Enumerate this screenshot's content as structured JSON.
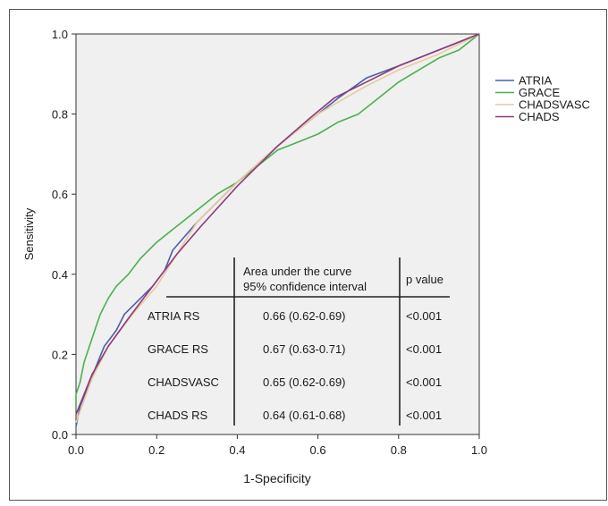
{
  "chart_data": {
    "type": "line",
    "title": "",
    "xlabel": "1-Specificity",
    "ylabel": "Sensitivity",
    "xlim": [
      0,
      1
    ],
    "ylim": [
      0,
      1
    ],
    "xticks": [
      "0.0",
      "0.2",
      "0.4",
      "0.6",
      "0.8",
      "1.0"
    ],
    "yticks": [
      "0.0",
      "0.2",
      "0.4",
      "0.6",
      "0.8",
      "1.0"
    ],
    "grid": false,
    "legend_position": "right",
    "series": [
      {
        "name": "ATRIA",
        "color": "#4a5fa8",
        "points": [
          [
            0,
            0.02
          ],
          [
            0.01,
            0.07
          ],
          [
            0.03,
            0.12
          ],
          [
            0.05,
            0.17
          ],
          [
            0.07,
            0.22
          ],
          [
            0.1,
            0.26
          ],
          [
            0.12,
            0.3
          ],
          [
            0.15,
            0.33
          ],
          [
            0.19,
            0.37
          ],
          [
            0.22,
            0.41
          ],
          [
            0.24,
            0.46
          ],
          [
            0.3,
            0.53
          ],
          [
            0.4,
            0.63
          ],
          [
            0.5,
            0.72
          ],
          [
            0.6,
            0.8
          ],
          [
            0.65,
            0.84
          ],
          [
            0.72,
            0.89
          ],
          [
            0.8,
            0.92
          ],
          [
            0.9,
            0.96
          ],
          [
            1,
            1
          ]
        ]
      },
      {
        "name": "GRACE",
        "color": "#4caf50",
        "points": [
          [
            0,
            0.06
          ],
          [
            0,
            0.1
          ],
          [
            0.01,
            0.13
          ],
          [
            0.02,
            0.18
          ],
          [
            0.03,
            0.21
          ],
          [
            0.04,
            0.24
          ],
          [
            0.05,
            0.27
          ],
          [
            0.06,
            0.3
          ],
          [
            0.08,
            0.34
          ],
          [
            0.1,
            0.37
          ],
          [
            0.13,
            0.4
          ],
          [
            0.16,
            0.44
          ],
          [
            0.2,
            0.48
          ],
          [
            0.25,
            0.52
          ],
          [
            0.3,
            0.56
          ],
          [
            0.35,
            0.6
          ],
          [
            0.4,
            0.63
          ],
          [
            0.45,
            0.67
          ],
          [
            0.5,
            0.71
          ],
          [
            0.55,
            0.73
          ],
          [
            0.6,
            0.75
          ],
          [
            0.65,
            0.78
          ],
          [
            0.7,
            0.8
          ],
          [
            0.75,
            0.84
          ],
          [
            0.8,
            0.88
          ],
          [
            0.85,
            0.91
          ],
          [
            0.9,
            0.94
          ],
          [
            0.95,
            0.96
          ],
          [
            1,
            1
          ]
        ]
      },
      {
        "name": "CHADSVASC",
        "color": "#e8c9a0",
        "points": [
          [
            0,
            0.03
          ],
          [
            0.04,
            0.14
          ],
          [
            0.08,
            0.22
          ],
          [
            0.14,
            0.3
          ],
          [
            0.2,
            0.37
          ],
          [
            0.3,
            0.53
          ],
          [
            0.4,
            0.63
          ],
          [
            0.5,
            0.72
          ],
          [
            0.6,
            0.8
          ],
          [
            0.65,
            0.83
          ],
          [
            0.72,
            0.87
          ],
          [
            0.8,
            0.91
          ],
          [
            0.9,
            0.95
          ],
          [
            1,
            1
          ]
        ]
      },
      {
        "name": "CHADS",
        "color": "#8e3a7a",
        "points": [
          [
            0,
            0.05
          ],
          [
            0.04,
            0.15
          ],
          [
            0.08,
            0.22
          ],
          [
            0.13,
            0.29
          ],
          [
            0.19,
            0.37
          ],
          [
            0.25,
            0.45
          ],
          [
            0.31,
            0.52
          ],
          [
            0.4,
            0.62
          ],
          [
            0.5,
            0.72
          ],
          [
            0.58,
            0.79
          ],
          [
            0.64,
            0.84
          ],
          [
            0.72,
            0.88
          ],
          [
            0.8,
            0.92
          ],
          [
            0.9,
            0.96
          ],
          [
            1,
            1
          ]
        ]
      }
    ],
    "annotation_table": {
      "headers": [
        "",
        "Area under the curve\n95% confidence interval",
        "p value"
      ],
      "rows": [
        [
          "ATRIA RS",
          "0.66 (0.62-0.69)",
          "<0.001"
        ],
        [
          "GRACE RS",
          "0.67 (0.63-0.71)",
          "<0.001"
        ],
        [
          "CHADSVASC",
          "0.65 (0.62-0.69)",
          "<0.001"
        ],
        [
          "CHADS RS",
          "0.64 (0.61-0.68)",
          "<0.001"
        ]
      ]
    }
  }
}
